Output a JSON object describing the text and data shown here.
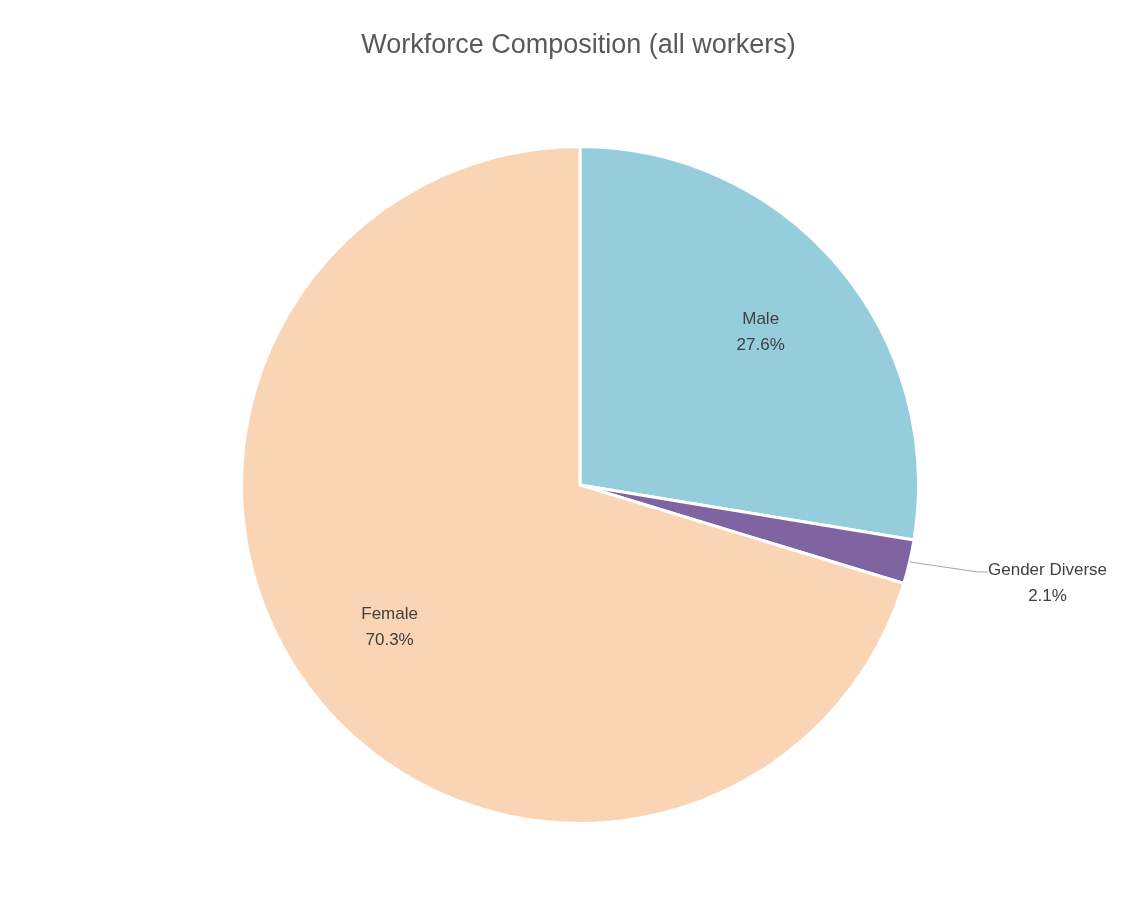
{
  "chart_data": {
    "type": "pie",
    "title": "Workforce Composition (all workers)",
    "categories": [
      "Male",
      "Gender Diverse",
      "Female"
    ],
    "values": [
      27.6,
      2.1,
      70.3
    ],
    "value_labels": [
      "27.6%",
      "2.1%",
      "70.3%"
    ],
    "colors": [
      "#96cddd",
      "#8064a2",
      "#fad5b5"
    ],
    "legend": false
  }
}
